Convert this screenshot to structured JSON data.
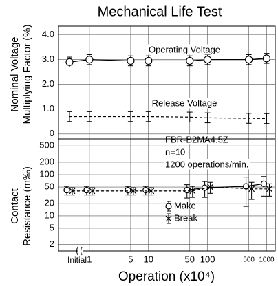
{
  "chart_data": [
    {
      "type": "line",
      "title": "Mechanical Life Test",
      "ylabel": [
        "Nominal Voltage",
        "Multiplying Factor (%)"
      ],
      "x": [
        "Initial",
        1,
        5,
        10,
        50,
        100,
        500,
        1000
      ],
      "xlim": [
        0.3,
        1400
      ],
      "xscale": "log",
      "xticks": [
        1,
        5,
        10,
        50,
        100,
        500,
        1000
      ],
      "ylim": [
        -0.2,
        4.35
      ],
      "yticks": [
        {
          "value": 4,
          "label": "4.0"
        },
        {
          "value": 3,
          "label": "3.0"
        },
        {
          "value": 2,
          "label": "2.0"
        },
        {
          "value": 1,
          "label": "1.0"
        },
        0
      ],
      "grid": true,
      "series": [
        {
          "name": "Operating Voltage",
          "color": "#000000",
          "marker": "circle",
          "linestyle": "solid",
          "values": [
            2.9,
            3.0,
            2.95,
            2.95,
            2.95,
            3.0,
            3.0,
            3.05
          ],
          "errors": [
            0.2,
            0.2,
            0.2,
            0.2,
            0.2,
            0.2,
            0.2,
            0.2
          ]
        },
        {
          "name": "Release Voltage",
          "color": "#000000",
          "marker": "none",
          "linestyle": "dashed",
          "values": [
            0.7,
            0.7,
            0.7,
            0.7,
            0.68,
            0.65,
            0.63,
            0.62
          ],
          "errors": [
            0.2,
            0.2,
            0.2,
            0.2,
            0.2,
            0.2,
            0.2,
            0.2
          ]
        }
      ]
    },
    {
      "type": "line",
      "ylabel": [
        "Contact",
        "Resistance (m‰)"
      ],
      "xlabel": "Operation (x10⁴)",
      "x": [
        "Initial",
        1,
        5,
        10,
        50,
        100,
        500,
        1000
      ],
      "xlim": [
        0.3,
        1400
      ],
      "xscale": "log",
      "xticks": [
        1,
        5,
        10,
        50,
        100,
        500,
        1000
      ],
      "ylim": [
        1.4,
        740
      ],
      "yscale": "log",
      "yticks": [
        500,
        200,
        100,
        50,
        20,
        10,
        5,
        2
      ],
      "grid": true,
      "annotations": [
        "FBR-B2MA4.5Z",
        "n=10",
        "1200 operations/min."
      ],
      "legend": "lower center",
      "series": [
        {
          "name": "Make",
          "color": "#000000",
          "marker": "circle",
          "linestyle": "solid",
          "values": [
            42,
            42,
            42,
            42,
            42,
            48,
            52,
            60
          ],
          "errors": [
            10,
            10,
            10,
            10,
            15,
            20,
            35,
            30
          ]
        },
        {
          "name": "Break",
          "color": "#000000",
          "marker": "x",
          "linestyle": "dashed",
          "values": [
            40,
            40,
            40,
            40,
            40,
            50,
            45,
            45
          ],
          "errors": [
            8,
            8,
            8,
            8,
            12,
            15,
            20,
            15
          ]
        }
      ]
    }
  ]
}
